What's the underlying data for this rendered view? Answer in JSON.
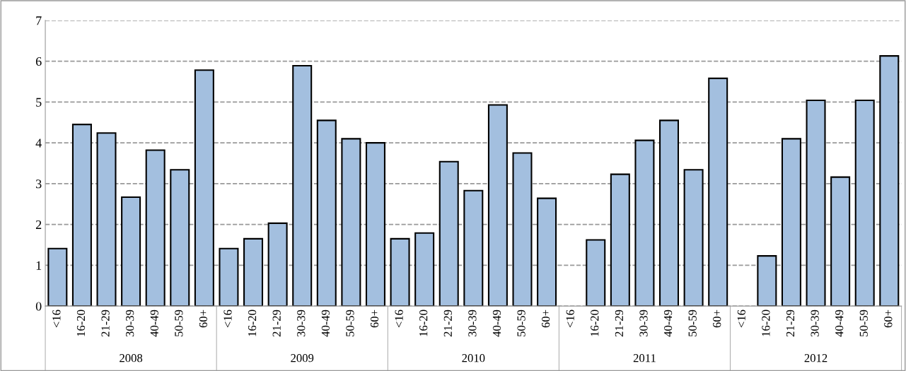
{
  "chart_data": {
    "type": "bar",
    "categories": [
      "<16",
      "16-20",
      "21-29",
      "30-39",
      "40-49",
      "50-59",
      "60+",
      "<16",
      "16-20",
      "21-29",
      "30-39",
      "40-49",
      "50-59",
      "60+",
      "<16",
      "16-20",
      "21-29",
      "30-39",
      "40-49",
      "50-59",
      "60+",
      "<16",
      "16-20",
      "21-29",
      "30-39",
      "40-49",
      "50-59",
      "60+",
      "<16",
      "16-20",
      "21-29",
      "30-39",
      "40-49",
      "50-59",
      "60+"
    ],
    "values": [
      1.41,
      4.45,
      4.24,
      2.67,
      3.82,
      3.34,
      5.78,
      1.41,
      1.65,
      2.03,
      5.89,
      4.55,
      4.1,
      4.0,
      1.65,
      1.79,
      3.54,
      2.83,
      4.93,
      3.75,
      2.64,
      null,
      1.62,
      3.23,
      4.06,
      4.55,
      3.34,
      5.58,
      null,
      1.23,
      4.1,
      5.04,
      3.16,
      5.04,
      6.13
    ],
    "color": "#a3bfdf",
    "annotations": [
      "2008",
      "2009",
      "2010",
      "2011",
      "2012"
    ],
    "ylim": [
      0,
      7
    ],
    "yticks": [
      0,
      1,
      2,
      3,
      4,
      5,
      6,
      7
    ],
    "grid": "y"
  }
}
